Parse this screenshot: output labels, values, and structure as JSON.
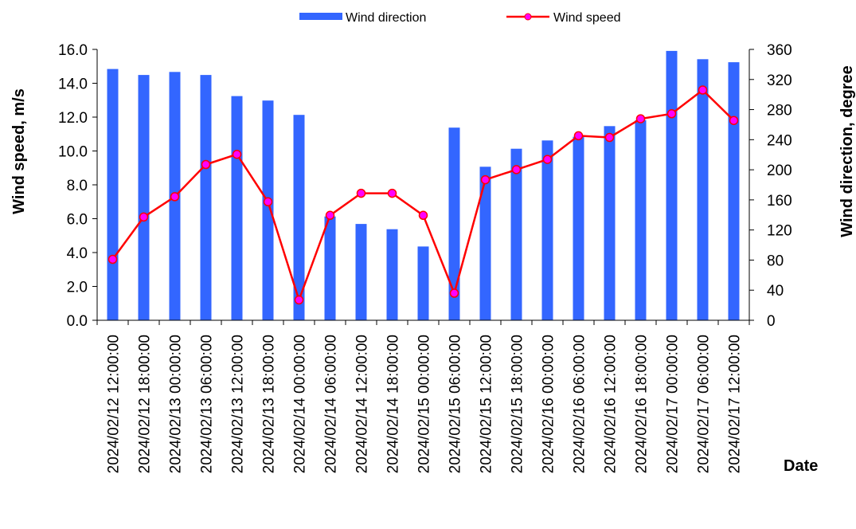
{
  "chart_data": {
    "type": "bar+line",
    "title": "",
    "xlabel": "Date",
    "ylabel_left": "Wind speed, m/s",
    "ylabel_right": "Wind direction, degree",
    "ylim_left": [
      0,
      16
    ],
    "ylim_right": [
      0,
      360
    ],
    "yticks_left": [
      "0.0",
      "2.0",
      "4.0",
      "6.0",
      "8.0",
      "10.0",
      "12.0",
      "14.0",
      "16.0"
    ],
    "yticks_right": [
      "0",
      "40",
      "80",
      "120",
      "160",
      "200",
      "240",
      "280",
      "320",
      "360"
    ],
    "grid": false,
    "legend_position": "top",
    "categories": [
      "2024/02/12 12:00:00",
      "2024/02/12 18:00:00",
      "2024/02/13 00:00:00",
      "2024/02/13 06:00:00",
      "2024/02/13 12:00:00",
      "2024/02/13 18:00:00",
      "2024/02/14 00:00:00",
      "2024/02/14 06:00:00",
      "2024/02/14 12:00:00",
      "2024/02/14 18:00:00",
      "2024/02/15 00:00:00",
      "2024/02/15 06:00:00",
      "2024/02/15 12:00:00",
      "2024/02/15 18:00:00",
      "2024/02/16 00:00:00",
      "2024/02/16 06:00:00",
      "2024/02/16 12:00:00",
      "2024/02/16 18:00:00",
      "2024/02/17 00:00:00",
      "2024/02/17 06:00:00",
      "2024/02/17 12:00:00"
    ],
    "series": [
      {
        "name": "Wind direction",
        "kind": "bar",
        "axis": "right",
        "color": "#3366ff",
        "values": [
          334,
          326,
          330,
          326,
          298,
          292,
          273,
          138,
          128,
          121,
          98,
          256,
          204,
          228,
          239,
          244,
          258,
          266,
          358,
          347,
          343
        ]
      },
      {
        "name": "Wind speed",
        "kind": "line",
        "axis": "left",
        "color": "#ff0000",
        "marker_color": "#ff00ff",
        "values": [
          3.6,
          6.1,
          7.3,
          9.2,
          9.8,
          7.0,
          1.2,
          6.2,
          7.5,
          7.5,
          6.2,
          1.6,
          8.3,
          8.9,
          9.5,
          10.9,
          10.8,
          11.9,
          12.2,
          13.6,
          11.8
        ]
      }
    ]
  }
}
